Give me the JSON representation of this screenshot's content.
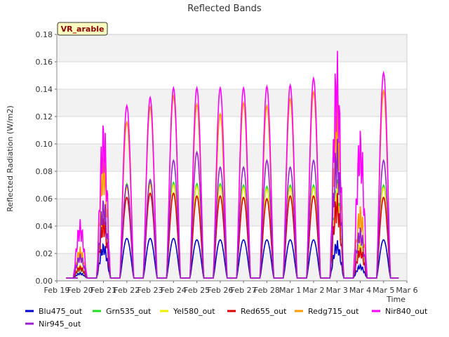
{
  "chart_data": {
    "type": "line",
    "title": "Reflected Bands",
    "ylabel": "Reflected Radiation (W/m2)",
    "xlabel": "Time",
    "badge": "VR_arable",
    "ylim": [
      0,
      0.18
    ],
    "yticks": [
      "0.00",
      "0.02",
      "0.04",
      "0.06",
      "0.08",
      "0.10",
      "0.12",
      "0.14",
      "0.16",
      "0.18"
    ],
    "xticks": [
      "Feb 19",
      "Feb 20",
      "Feb 21",
      "Feb 22",
      "Feb 23",
      "Feb 24",
      "Feb 25",
      "Feb 26",
      "Feb 27",
      "Feb 28",
      "Mar 1",
      "Mar 2",
      "Mar 3",
      "Mar 4",
      "Mar 5",
      "Mar 6"
    ],
    "xlim": [
      0,
      15
    ],
    "grid": true,
    "legend_position": "bottom",
    "days": [
      {
        "day": 1.0,
        "blu": 0.006,
        "grn": 0.01,
        "yel": 0.012,
        "red": 0.011,
        "redg": 0.025,
        "nir840": 0.045,
        "nir945": 0.02
      },
      {
        "day": 2.0,
        "blu": 0.028,
        "grn": 0.06,
        "yel": 0.055,
        "red": 0.048,
        "redg": 0.095,
        "nir840": 0.12,
        "nir945": 0.062
      },
      {
        "day": 3.0,
        "blu": 0.031,
        "grn": 0.071,
        "yel": 0.068,
        "red": 0.061,
        "redg": 0.116,
        "nir840": 0.128,
        "nir945": 0.07
      },
      {
        "day": 4.0,
        "blu": 0.031,
        "grn": 0.072,
        "yel": 0.07,
        "red": 0.064,
        "redg": 0.127,
        "nir840": 0.134,
        "nir945": 0.074
      },
      {
        "day": 5.0,
        "blu": 0.031,
        "grn": 0.072,
        "yel": 0.07,
        "red": 0.064,
        "redg": 0.135,
        "nir840": 0.141,
        "nir945": 0.088
      },
      {
        "day": 6.0,
        "blu": 0.03,
        "grn": 0.071,
        "yel": 0.069,
        "red": 0.062,
        "redg": 0.129,
        "nir840": 0.141,
        "nir945": 0.094
      },
      {
        "day": 7.0,
        "blu": 0.03,
        "grn": 0.071,
        "yel": 0.069,
        "red": 0.062,
        "redg": 0.122,
        "nir840": 0.141,
        "nir945": 0.083
      },
      {
        "day": 8.0,
        "blu": 0.03,
        "grn": 0.07,
        "yel": 0.068,
        "red": 0.061,
        "redg": 0.13,
        "nir840": 0.141,
        "nir945": 0.083
      },
      {
        "day": 9.0,
        "blu": 0.03,
        "grn": 0.069,
        "yel": 0.067,
        "red": 0.06,
        "redg": 0.128,
        "nir840": 0.142,
        "nir945": 0.088
      },
      {
        "day": 10.0,
        "blu": 0.03,
        "grn": 0.07,
        "yel": 0.068,
        "red": 0.062,
        "redg": 0.133,
        "nir840": 0.143,
        "nir945": 0.083
      },
      {
        "day": 11.0,
        "blu": 0.03,
        "grn": 0.07,
        "yel": 0.068,
        "red": 0.062,
        "redg": 0.138,
        "nir840": 0.148,
        "nir945": 0.088
      },
      {
        "day": 12.0,
        "blu": 0.03,
        "grn": 0.075,
        "yel": 0.072,
        "red": 0.065,
        "redg": 0.135,
        "nir840": 0.17,
        "nir945": 0.105
      },
      {
        "day": 13.0,
        "blu": 0.012,
        "grn": 0.03,
        "yel": 0.03,
        "red": 0.025,
        "redg": 0.056,
        "nir840": 0.113,
        "nir945": 0.04
      },
      {
        "day": 14.0,
        "blu": 0.03,
        "grn": 0.07,
        "yel": 0.068,
        "red": 0.061,
        "redg": 0.139,
        "nir840": 0.152,
        "nir945": 0.088
      }
    ],
    "series": [
      {
        "name": "Blu475_out",
        "key": "blu",
        "color": "#0000cc"
      },
      {
        "name": "Grn535_out",
        "key": "grn",
        "color": "#22dd22"
      },
      {
        "name": "Yel580_out",
        "key": "yel",
        "color": "#eeee00"
      },
      {
        "name": "Red655_out",
        "key": "red",
        "color": "#dd0000"
      },
      {
        "name": "Redg715_out",
        "key": "redg",
        "color": "#ff9900"
      },
      {
        "name": "Nir840_out",
        "key": "nir840",
        "color": "#ff00ff"
      },
      {
        "name": "Nir945_out",
        "key": "nir945",
        "color": "#9922cc"
      }
    ],
    "baseline": 0.002,
    "colors": {
      "band": "#f2f2f2",
      "grid": "#d8d8d8",
      "badge_bg": "#ffffc0"
    }
  }
}
